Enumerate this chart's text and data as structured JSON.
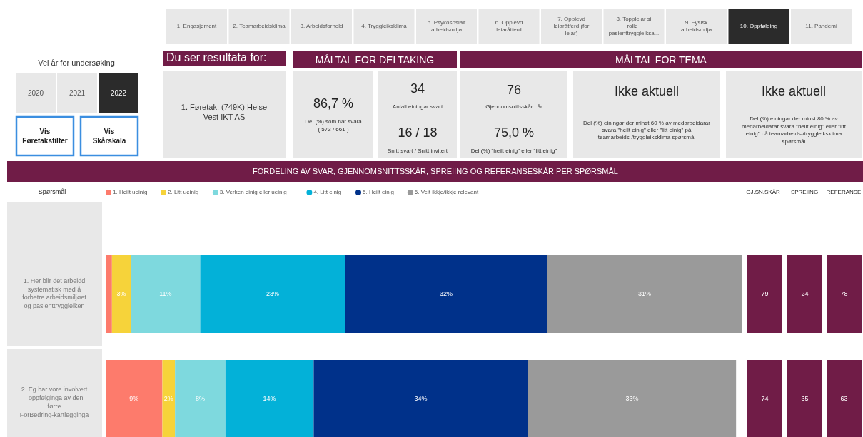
{
  "chart_data": {
    "type": "bar",
    "orientation": "horizontal",
    "stacked": true,
    "title": "FORDELING AV SVAR, GJENNOMSNITTSSKÅR, SPREIING OG REFERANSESKÅR PER SPØRSMÅL",
    "categories": [
      "1. Her blir det arbeidd systematisk med å forbetre arbeidsmiljøet og pasienttryggleiken",
      "2. Eg har vore involvert i oppfølginga av den førre ForBedring-kartlegginga"
    ],
    "xlim": [
      0,
      101
    ],
    "legend": "top left",
    "series": [
      {
        "name": "1. Heilt ueinig",
        "color": "#fd7b6c",
        "values": [
          1,
          9
        ],
        "value_labels": [
          null,
          "9%"
        ]
      },
      {
        "name": "2. Litt ueinig",
        "color": "#f6d33a",
        "values": [
          3,
          2
        ],
        "value_labels": [
          "3%",
          "2%"
        ]
      },
      {
        "name": "3. Verken einig eller ueinig",
        "color": "#7ed9de",
        "values": [
          11,
          8
        ],
        "value_labels": [
          "11%",
          "8%"
        ]
      },
      {
        "name": "4. Litt einig",
        "color": "#03b1d8",
        "values": [
          23,
          14
        ],
        "value_labels": [
          "23%",
          "14%"
        ]
      },
      {
        "name": "5. Heilt einig",
        "color": "#00318a",
        "values": [
          32,
          34
        ],
        "value_labels": [
          "32%",
          "34%"
        ]
      },
      {
        "name": "6. Veit ikkje/ikkje relevant",
        "color": "#9a9a9a",
        "values": [
          31,
          33
        ],
        "value_labels": [
          "31%",
          "33%"
        ]
      }
    ],
    "annotations": [
      "Vel år for undersøking",
      "2020",
      "2021",
      "2022",
      "Vis Føretaksfilter",
      "Vis Skårskala",
      "1. Engasjement",
      "2. Teamarbeidsklima",
      "3. Arbeidsforhold",
      "4. Tryggleiksklima",
      "5. Psykososialt arbeidsmiljø",
      "6. Opplevd leiaråtferd",
      "7. Opplevd leiaråtferd (for leiar)",
      "8. Toppleiar si rolle i pasienttryggleiksa...",
      "9. Fysisk arbeidsmiljø",
      "10. Oppfølging",
      "11. Pandemi",
      "Du ser resultata for:",
      "1. Føretak: (749K) Helse Vest IKT AS",
      "MÅLTAL FOR DELTAKING",
      "MÅLTAL FOR TEMA",
      "86,7 %",
      "Del (%) som har svara",
      "( 573 / 661 )",
      "34",
      "Antall einingar svart",
      "16 / 18",
      "Snitt svart / Snitt invitert",
      "76",
      "Gjennomsnittsskår i år",
      "75,0 %",
      "Del (%) \"heilt einig\" eller \"litt einig\"",
      "Ikke aktuell",
      "Del (%) einingar der minst 60 % av medarbeidarar svara \"heilt einig\" eller \"litt einig\" på teamarbeids-/tryggleiksklima spørsmål",
      "Ikke aktuell",
      "Del (%) einingar der minst 80 % av medarbeidarar svara \"heilt einig\" eller \"litt einig\" på teamarbeids-/tryggleiksklima spørsmål",
      "Spørsmål",
      "GJ.SN.SKÅR",
      "SPREIING",
      "REFERANSE",
      "79",
      "24",
      "78",
      "74",
      "35",
      "63"
    ]
  }
}
